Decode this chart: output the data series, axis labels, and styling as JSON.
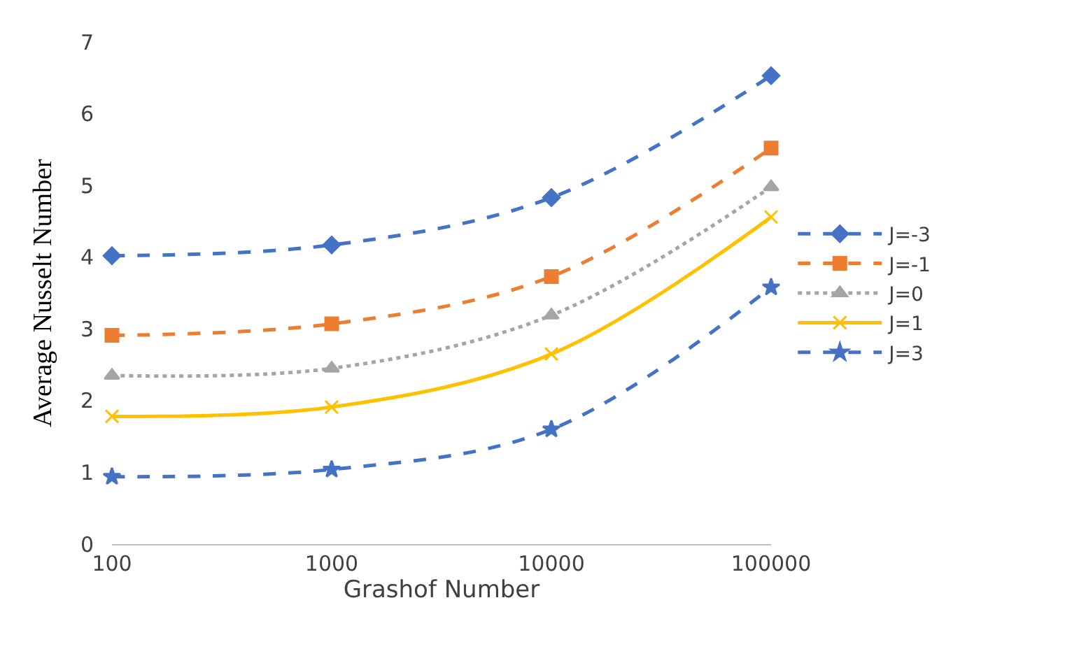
{
  "chart_data": {
    "type": "line",
    "xlabel": "Grashof Number",
    "ylabel": "Average Nusselt Number",
    "x": [
      100,
      1000,
      10000,
      100000
    ],
    "log": "x",
    "xlim": [
      100,
      100000
    ],
    "xticks": [
      100,
      1000,
      10000,
      100000
    ],
    "ylim": [
      0,
      7
    ],
    "yticks": [
      0,
      1,
      2,
      3,
      4,
      5,
      6,
      7
    ],
    "grid": false,
    "legend": "right",
    "series": [
      {
        "name": "J=-3",
        "color": "#4472c4",
        "marker": "diamond",
        "line_style": "dashed",
        "values": [
          4.02,
          4.17,
          4.83,
          6.53
        ]
      },
      {
        "name": "J=-1",
        "color": "#ed7d31",
        "marker": "square",
        "line_style": "dashed",
        "values": [
          2.91,
          3.07,
          3.73,
          5.52
        ]
      },
      {
        "name": "J=0",
        "color": "#a5a5a5",
        "marker": "triangle",
        "line_style": "dotted",
        "values": [
          2.35,
          2.45,
          3.19,
          4.98
        ]
      },
      {
        "name": "J=1",
        "color": "#ffc000",
        "marker": "cross",
        "line_style": "solid",
        "values": [
          1.78,
          1.91,
          2.65,
          4.56
        ]
      },
      {
        "name": "J=3",
        "color": "#4472c4",
        "marker": "star",
        "line_style": "dashed",
        "values": [
          0.94,
          1.04,
          1.6,
          3.58
        ]
      }
    ]
  }
}
